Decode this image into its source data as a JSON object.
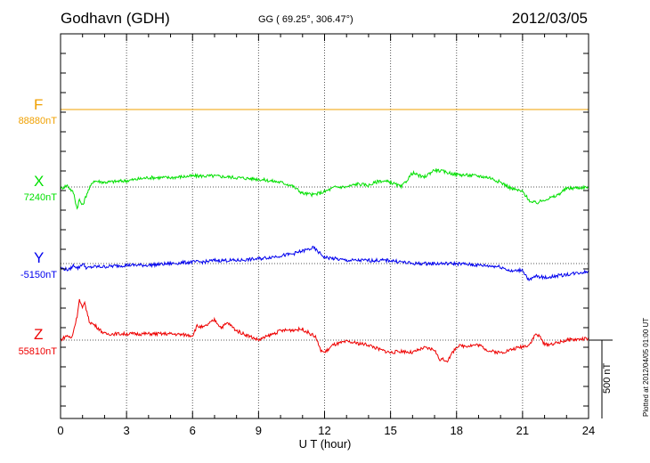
{
  "header": {
    "station": "Godhavn (GDH)",
    "coords": "GG ( 69.25°, 306.47°)",
    "date": "2012/03/05"
  },
  "components": [
    {
      "name": "F",
      "baseline": "88880nT",
      "color": "#f0a000"
    },
    {
      "name": "X",
      "baseline": "7240nT",
      "color": "#00e000"
    },
    {
      "name": "Y",
      "baseline": "-5150nT",
      "color": "#0000ee"
    },
    {
      "name": "Z",
      "baseline": "55810nT",
      "color": "#ee0000"
    }
  ],
  "scale_bar": {
    "label": "500 nT"
  },
  "footer_note": "Plotted at 2012/04/05 01:00 UT",
  "chart_data": {
    "type": "line",
    "xlabel": "U T (hour)",
    "xlim": [
      0,
      24
    ],
    "xticks": [
      "0",
      "3",
      "6",
      "9",
      "12",
      "15",
      "18",
      "21",
      "24"
    ],
    "units": "nT",
    "series": [
      {
        "name": "F",
        "baseline_nT": 88880,
        "x": [
          0,
          6,
          12,
          18,
          24
        ],
        "y": [
          0,
          0,
          0,
          0,
          0
        ]
      },
      {
        "name": "X",
        "baseline_nT": 7240,
        "x": [
          0,
          0.3,
          0.6,
          0.75,
          0.85,
          1.0,
          1.2,
          1.5,
          2,
          3,
          4,
          5,
          6,
          7,
          8,
          9,
          10,
          10.5,
          11,
          11.5,
          12,
          12.5,
          13,
          13.5,
          14,
          14.5,
          15,
          15.5,
          16,
          16.5,
          17,
          18,
          19,
          19.5,
          20,
          20.5,
          21,
          21.4,
          21.7,
          22,
          22.5,
          23,
          24
        ],
        "y": [
          -10,
          10,
          -40,
          -140,
          -80,
          -120,
          -40,
          40,
          30,
          40,
          60,
          60,
          70,
          70,
          60,
          50,
          30,
          10,
          -40,
          -50,
          -30,
          0,
          0,
          20,
          10,
          40,
          30,
          0,
          90,
          60,
          110,
          80,
          70,
          60,
          30,
          -10,
          -30,
          -100,
          -100,
          -80,
          -60,
          -10,
          0
        ]
      },
      {
        "name": "Y",
        "baseline_nT": -5150,
        "x": [
          0,
          0.4,
          0.6,
          0.8,
          1.0,
          1.2,
          1.5,
          2,
          3,
          4,
          5,
          6,
          6.5,
          7,
          8,
          9,
          10,
          10.5,
          11,
          11.5,
          12,
          12.5,
          13,
          14,
          15,
          16,
          17,
          18,
          19,
          20,
          20.5,
          21,
          21.3,
          21.6,
          22,
          23,
          24
        ],
        "y": [
          -30,
          -40,
          -10,
          -30,
          0,
          -30,
          -20,
          -20,
          -10,
          -10,
          0,
          10,
          10,
          20,
          20,
          30,
          50,
          60,
          80,
          100,
          40,
          30,
          20,
          20,
          20,
          0,
          0,
          0,
          -10,
          -20,
          -50,
          -40,
          -110,
          -80,
          -90,
          -70,
          -50
        ]
      },
      {
        "name": "Z",
        "baseline_nT": 55810,
        "x": [
          0,
          0.3,
          0.5,
          0.75,
          0.85,
          1.0,
          1.1,
          1.3,
          1.6,
          2,
          3,
          4,
          5,
          6,
          6.2,
          6.5,
          7,
          7.3,
          7.6,
          8,
          8.5,
          9,
          10,
          11,
          11.6,
          11.8,
          12,
          12.4,
          13,
          14,
          14.5,
          15,
          15.5,
          16,
          16.5,
          17,
          17.2,
          17.6,
          18,
          19,
          19.5,
          20,
          20.5,
          21,
          21.3,
          21.6,
          21.8,
          22,
          22.5,
          23,
          24
        ],
        "y": [
          0,
          30,
          10,
          150,
          260,
          200,
          240,
          120,
          90,
          40,
          40,
          40,
          40,
          30,
          90,
          80,
          130,
          80,
          110,
          60,
          30,
          0,
          60,
          70,
          20,
          -60,
          -80,
          -30,
          -10,
          -30,
          -60,
          -80,
          -70,
          -80,
          -50,
          -60,
          -120,
          -130,
          -40,
          -30,
          -70,
          -80,
          -60,
          -40,
          -30,
          40,
          20,
          -30,
          -20,
          0,
          10
        ]
      }
    ]
  }
}
